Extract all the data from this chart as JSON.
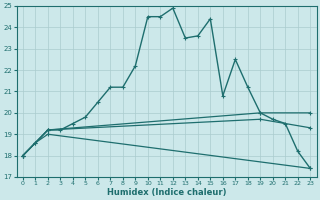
{
  "xlabel": "Humidex (Indice chaleur)",
  "xlim_min": -0.5,
  "xlim_max": 23.5,
  "ylim_min": 17,
  "ylim_max": 25,
  "yticks": [
    17,
    18,
    19,
    20,
    21,
    22,
    23,
    24,
    25
  ],
  "xticks": [
    0,
    1,
    2,
    3,
    4,
    5,
    6,
    7,
    8,
    9,
    10,
    11,
    12,
    13,
    14,
    15,
    16,
    17,
    18,
    19,
    20,
    21,
    22,
    23
  ],
  "background_color": "#cce8ea",
  "grid_color": "#aaccce",
  "line_color": "#1e6e6e",
  "series": [
    {
      "name": "main_curve",
      "x": [
        0,
        1,
        2,
        3,
        4,
        5,
        6,
        7,
        8,
        9,
        10,
        11,
        12,
        13,
        14,
        15,
        16,
        17,
        18,
        19,
        20,
        21,
        22,
        23
      ],
      "y": [
        18.0,
        18.6,
        19.2,
        19.2,
        19.5,
        19.8,
        20.5,
        21.2,
        21.2,
        22.2,
        24.5,
        24.5,
        24.9,
        23.5,
        23.6,
        24.4,
        20.8,
        22.5,
        21.2,
        20.0,
        19.7,
        19.5,
        18.2,
        17.4
      ],
      "linestyle": "-",
      "linewidth": 1.0,
      "markersize": 3.0
    },
    {
      "name": "upper_flat",
      "x": [
        0,
        2,
        19,
        23
      ],
      "y": [
        18.0,
        19.2,
        20.0,
        20.0
      ],
      "linestyle": "-",
      "linewidth": 0.9,
      "markersize": 2.5
    },
    {
      "name": "middle_flat",
      "x": [
        0,
        2,
        19,
        23
      ],
      "y": [
        18.0,
        19.2,
        19.7,
        19.3
      ],
      "linestyle": "-",
      "linewidth": 0.9,
      "markersize": 2.5
    },
    {
      "name": "lower_baseline",
      "x": [
        0,
        1,
        2,
        23
      ],
      "y": [
        18.0,
        18.6,
        19.0,
        17.4
      ],
      "linestyle": "-",
      "linewidth": 0.9,
      "markersize": 2.5
    }
  ]
}
